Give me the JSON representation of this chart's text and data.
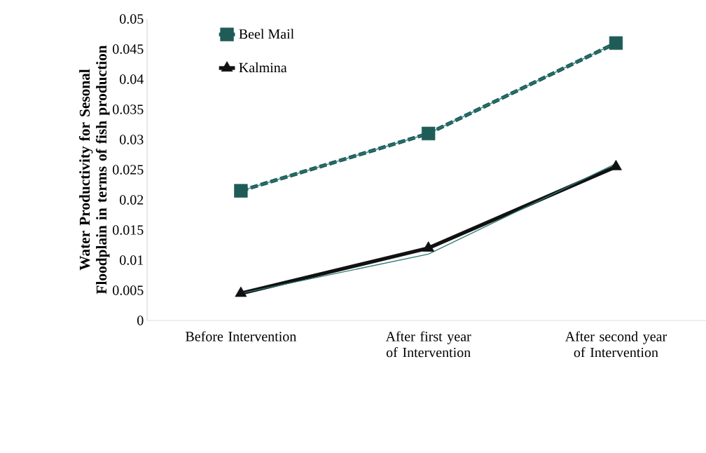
{
  "chart_data": {
    "type": "line",
    "ylabel": "Water  Productivity for Sesonal Floodplain in terms of fish production",
    "categories": [
      "Before Intervention",
      "After first year of Intervention",
      "After second year of Intervention"
    ],
    "series": [
      {
        "name": "Beel Mail",
        "color": "#1f5c58",
        "values": [
          0.0215,
          0.031,
          0.046
        ],
        "marker": "square",
        "line_style": "dashed"
      },
      {
        "name": "Kalmina",
        "color": "#111111",
        "values": [
          0.0045,
          0.012,
          0.0255
        ],
        "marker": "triangle"
      },
      {
        "color": "#2a7a74",
        "values": [
          0.0215,
          0.031,
          0.046
        ],
        "marker": "none"
      },
      {
        "color": "#2a7a74",
        "values": [
          0.0045,
          0.011,
          0.026
        ],
        "marker": "none"
      }
    ],
    "ylim": [
      0,
      0.05
    ],
    "yticks": [
      0,
      0.005,
      0.01,
      0.015,
      0.02,
      0.025,
      0.03,
      0.035,
      0.04,
      0.045,
      0.05
    ],
    "grid": false,
    "legend": "top left"
  }
}
